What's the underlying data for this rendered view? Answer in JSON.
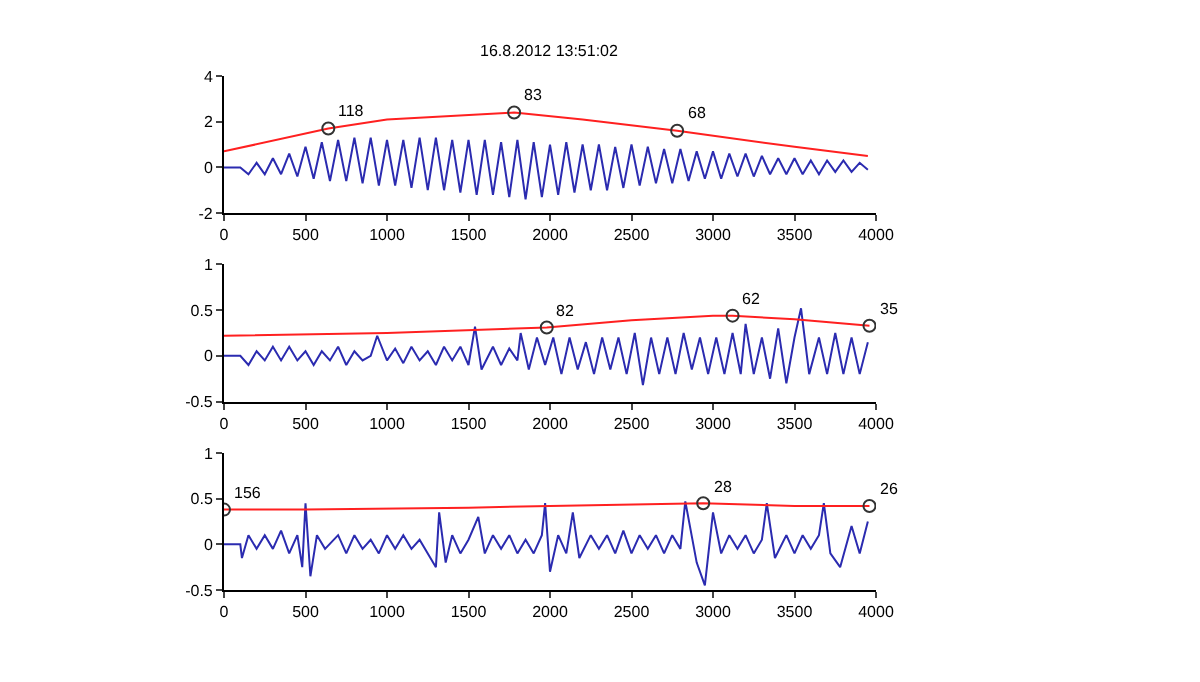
{
  "chart_data": [
    {
      "type": "line",
      "title": "16.8.2012 13:51:02",
      "xlim": [
        0,
        4000
      ],
      "xticks": [
        0,
        500,
        1000,
        1500,
        2000,
        2500,
        3000,
        3500,
        4000
      ],
      "ylim": [
        -2,
        4
      ],
      "yticks": [
        -2,
        0,
        2,
        4
      ],
      "legend": false,
      "marker": "none",
      "line_style": "solid",
      "series": [
        {
          "color": "#2b2bb0",
          "x": [
            0,
            50,
            100,
            150,
            200,
            250,
            300,
            350,
            400,
            450,
            500,
            550,
            600,
            650,
            700,
            750,
            800,
            850,
            900,
            950,
            1000,
            1050,
            1100,
            1150,
            1200,
            1250,
            1300,
            1350,
            1400,
            1450,
            1500,
            1550,
            1600,
            1650,
            1700,
            1750,
            1800,
            1850,
            1900,
            1950,
            2000,
            2050,
            2100,
            2150,
            2200,
            2250,
            2300,
            2350,
            2400,
            2450,
            2500,
            2550,
            2600,
            2650,
            2700,
            2750,
            2800,
            2850,
            2900,
            2950,
            3000,
            3050,
            3100,
            3150,
            3200,
            3250,
            3300,
            3350,
            3400,
            3450,
            3500,
            3550,
            3600,
            3650,
            3700,
            3750,
            3800,
            3850,
            3900,
            3950
          ],
          "values": [
            0,
            0,
            0,
            -0.3,
            0.2,
            -0.3,
            0.4,
            -0.3,
            0.6,
            -0.4,
            0.9,
            -0.5,
            1.1,
            -0.6,
            1.2,
            -0.6,
            1.3,
            -0.7,
            1.3,
            -0.8,
            1.2,
            -0.8,
            1.2,
            -0.9,
            1.3,
            -1.0,
            1.3,
            -1.0,
            1.2,
            -1.1,
            1.2,
            -1.2,
            1.2,
            -1.2,
            1.1,
            -1.3,
            1.2,
            -1.4,
            1.1,
            -1.3,
            1.0,
            -1.2,
            1.1,
            -1.1,
            1.0,
            -1.0,
            1.0,
            -1.0,
            0.9,
            -0.9,
            1.0,
            -0.8,
            0.9,
            -0.7,
            0.8,
            -0.7,
            0.8,
            -0.6,
            0.7,
            -0.5,
            0.7,
            -0.5,
            0.6,
            -0.4,
            0.6,
            -0.4,
            0.5,
            -0.3,
            0.4,
            -0.3,
            0.4,
            -0.3,
            0.3,
            -0.3,
            0.3,
            -0.2,
            0.3,
            -0.2,
            0.2,
            -0.1
          ]
        },
        {
          "color": "#ff2020",
          "x": [
            0,
            640,
            1000,
            1780,
            2200,
            2780,
            3500,
            3950
          ],
          "values": [
            0.7,
            1.7,
            2.1,
            2.4,
            2.1,
            1.6,
            0.9,
            0.5
          ]
        },
        {
          "type": "scatter",
          "marker": "circle",
          "color": "#333333",
          "x": [
            640,
            1780,
            2780
          ],
          "values": [
            1.7,
            2.4,
            1.6
          ]
        }
      ],
      "annotations": [
        {
          "text": "118",
          "x": 640,
          "y": 1.7
        },
        {
          "text": "83",
          "x": 1780,
          "y": 2.4
        },
        {
          "text": "68",
          "x": 2780,
          "y": 1.6
        }
      ]
    },
    {
      "type": "line",
      "xlim": [
        0,
        4000
      ],
      "xticks": [
        0,
        500,
        1000,
        1500,
        2000,
        2500,
        3000,
        3500,
        4000
      ],
      "ylim": [
        -0.5,
        1
      ],
      "yticks": [
        -0.5,
        0,
        0.5,
        1
      ],
      "legend": false,
      "marker": "none",
      "line_style": "solid",
      "series": [
        {
          "color": "#2b2bb0",
          "x": [
            0,
            100,
            150,
            200,
            250,
            300,
            350,
            400,
            450,
            500,
            550,
            600,
            650,
            700,
            750,
            800,
            850,
            900,
            940,
            1000,
            1050,
            1100,
            1150,
            1200,
            1250,
            1300,
            1350,
            1400,
            1450,
            1500,
            1540,
            1580,
            1650,
            1700,
            1750,
            1800,
            1820,
            1870,
            1920,
            1970,
            2020,
            2070,
            2120,
            2170,
            2220,
            2270,
            2320,
            2370,
            2420,
            2470,
            2520,
            2570,
            2620,
            2670,
            2720,
            2770,
            2820,
            2870,
            2920,
            2970,
            3020,
            3070,
            3120,
            3170,
            3200,
            3250,
            3300,
            3350,
            3400,
            3450,
            3500,
            3540,
            3590,
            3650,
            3700,
            3750,
            3800,
            3850,
            3900,
            3950
          ],
          "values": [
            0,
            0,
            -0.1,
            0.05,
            -0.05,
            0.1,
            -0.05,
            0.1,
            -0.05,
            0.05,
            -0.1,
            0.05,
            -0.05,
            0.1,
            -0.1,
            0.05,
            -0.05,
            0,
            0.22,
            -0.05,
            0.08,
            -0.08,
            0.1,
            -0.05,
            0.05,
            -0.1,
            0.1,
            -0.05,
            0.1,
            -0.1,
            0.32,
            -0.15,
            0.1,
            -0.1,
            0.08,
            -0.05,
            0.25,
            -0.15,
            0.2,
            -0.1,
            0.2,
            -0.2,
            0.2,
            -0.15,
            0.15,
            -0.2,
            0.2,
            -0.15,
            0.2,
            -0.2,
            0.25,
            -0.32,
            0.2,
            -0.2,
            0.2,
            -0.2,
            0.25,
            -0.15,
            0.2,
            -0.2,
            0.2,
            -0.2,
            0.25,
            -0.2,
            0.35,
            -0.2,
            0.2,
            -0.25,
            0.3,
            -0.3,
            0.2,
            0.52,
            -0.2,
            0.2,
            -0.2,
            0.25,
            -0.2,
            0.2,
            -0.2,
            0.15
          ]
        },
        {
          "color": "#ff2020",
          "x": [
            0,
            1000,
            1980,
            2500,
            3000,
            3120,
            3500,
            3960
          ],
          "values": [
            0.22,
            0.25,
            0.31,
            0.39,
            0.44,
            0.44,
            0.4,
            0.33
          ]
        },
        {
          "type": "scatter",
          "marker": "circle",
          "color": "#333333",
          "x": [
            1980,
            3120,
            3960
          ],
          "values": [
            0.31,
            0.44,
            0.33
          ]
        }
      ],
      "annotations": [
        {
          "text": "82",
          "x": 1980,
          "y": 0.31
        },
        {
          "text": "62",
          "x": 3120,
          "y": 0.44
        },
        {
          "text": "35",
          "x": 3960,
          "y": 0.33
        }
      ]
    },
    {
      "type": "line",
      "xlim": [
        0,
        4000
      ],
      "xticks": [
        0,
        500,
        1000,
        1500,
        2000,
        2500,
        3000,
        3500,
        4000
      ],
      "ylim": [
        -0.5,
        1
      ],
      "yticks": [
        -0.5,
        0,
        0.5,
        1
      ],
      "legend": false,
      "marker": "none",
      "line_style": "solid",
      "series": [
        {
          "color": "#2b2bb0",
          "x": [
            0,
            100,
            110,
            150,
            200,
            250,
            300,
            350,
            400,
            450,
            480,
            500,
            530,
            570,
            620,
            700,
            750,
            800,
            850,
            900,
            950,
            1000,
            1050,
            1100,
            1150,
            1200,
            1250,
            1300,
            1320,
            1360,
            1400,
            1450,
            1500,
            1560,
            1600,
            1650,
            1700,
            1750,
            1800,
            1850,
            1900,
            1950,
            1970,
            2000,
            2050,
            2100,
            2140,
            2180,
            2250,
            2300,
            2350,
            2400,
            2450,
            2500,
            2550,
            2600,
            2650,
            2700,
            2750,
            2800,
            2830,
            2900,
            2950,
            3000,
            3050,
            3100,
            3150,
            3200,
            3250,
            3300,
            3330,
            3380,
            3450,
            3500,
            3550,
            3600,
            3650,
            3680,
            3720,
            3780,
            3850,
            3900,
            3950
          ],
          "values": [
            0,
            0,
            -0.15,
            0.1,
            -0.05,
            0.1,
            -0.05,
            0.15,
            -0.1,
            0.1,
            -0.25,
            0.45,
            -0.35,
            0.1,
            -0.05,
            0.1,
            -0.1,
            0.1,
            -0.05,
            0.05,
            -0.1,
            0.1,
            -0.05,
            0.1,
            -0.05,
            0.05,
            -0.1,
            -0.25,
            0.35,
            -0.2,
            0.1,
            -0.1,
            0.05,
            0.3,
            -0.1,
            0.1,
            -0.05,
            0.1,
            -0.1,
            0.05,
            -0.1,
            0.1,
            0.45,
            -0.3,
            0.1,
            -0.1,
            0.35,
            -0.15,
            0.1,
            -0.05,
            0.1,
            -0.1,
            0.15,
            -0.1,
            0.1,
            -0.05,
            0.1,
            -0.1,
            0.1,
            -0.05,
            0.47,
            -0.2,
            -0.45,
            0.35,
            -0.1,
            0.1,
            -0.05,
            0.1,
            -0.1,
            0.05,
            0.45,
            -0.15,
            0.1,
            -0.1,
            0.1,
            -0.05,
            0.1,
            0.45,
            -0.1,
            -0.25,
            0.2,
            -0.1,
            0.25
          ]
        },
        {
          "color": "#ff2020",
          "x": [
            0,
            500,
            1500,
            2000,
            2940,
            3500,
            3960
          ],
          "values": [
            0.38,
            0.38,
            0.4,
            0.42,
            0.45,
            0.42,
            0.42
          ]
        },
        {
          "type": "scatter",
          "marker": "circle",
          "color": "#333333",
          "x": [
            0,
            2940,
            3960
          ],
          "values": [
            0.38,
            0.45,
            0.42
          ]
        }
      ],
      "annotations": [
        {
          "text": "156",
          "x": 0,
          "y": 0.38
        },
        {
          "text": "28",
          "x": 2940,
          "y": 0.45
        },
        {
          "text": "26",
          "x": 3960,
          "y": 0.42
        }
      ]
    }
  ]
}
